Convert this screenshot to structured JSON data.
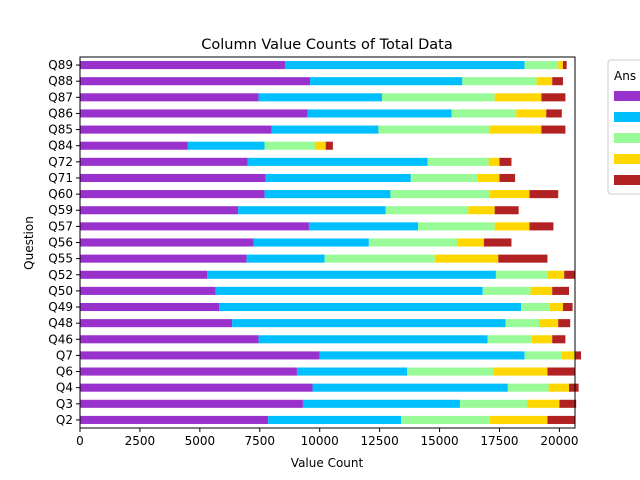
{
  "chart_data": {
    "type": "bar",
    "orientation": "horizontal",
    "stacked": true,
    "title": "Column Value Counts of Total Data",
    "xlabel": "Value Count",
    "ylabel": "Question",
    "xlim": [
      0,
      20650
    ],
    "xticks": [
      "0",
      "2500",
      "5000",
      "7500",
      "10000",
      "12500",
      "15000",
      "17500",
      "20000"
    ],
    "grid": false,
    "legend": {
      "title": "Ans",
      "placement": "right-outside-top"
    },
    "categories": [
      "Q2",
      "Q3",
      "Q4",
      "Q6",
      "Q7",
      "Q46",
      "Q48",
      "Q49",
      "Q50",
      "Q52",
      "Q55",
      "Q56",
      "Q57",
      "Q59",
      "Q60",
      "Q71",
      "Q72",
      "Q84",
      "Q85",
      "Q86",
      "Q87",
      "Q88",
      "Q89"
    ],
    "series": [
      {
        "color": "#9932cc",
        "values": [
          7850,
          9300,
          9700,
          9050,
          10000,
          7450,
          6350,
          5800,
          5650,
          5300,
          6950,
          7250,
          9550,
          6600,
          7700,
          7750,
          7000,
          4500,
          8000,
          9500,
          7450,
          9600,
          8550
        ]
      },
      {
        "color": "#00bfff",
        "values": [
          5550,
          6550,
          8150,
          4600,
          8550,
          9550,
          11400,
          12600,
          11150,
          12050,
          3250,
          4800,
          4550,
          6150,
          5250,
          6050,
          7500,
          3200,
          4450,
          6000,
          5150,
          6350,
          10000
        ]
      },
      {
        "color": "#98fb98",
        "values": [
          3700,
          2800,
          1700,
          3600,
          1550,
          1850,
          1400,
          1200,
          2000,
          2150,
          4600,
          3700,
          3200,
          3450,
          4150,
          2800,
          2550,
          2100,
          4650,
          2700,
          4700,
          3100,
          1400
        ]
      },
      {
        "color": "#ffd700",
        "values": [
          2400,
          1350,
          850,
          2250,
          550,
          850,
          800,
          550,
          900,
          700,
          2650,
          1100,
          1450,
          1100,
          1650,
          900,
          450,
          450,
          2150,
          1250,
          1950,
          650,
          200
        ]
      },
      {
        "color": "#b22222",
        "values": [
          1150,
          700,
          400,
          1150,
          250,
          550,
          500,
          400,
          700,
          450,
          2050,
          1150,
          1000,
          1000,
          1200,
          650,
          500,
          300,
          1000,
          650,
          1000,
          450,
          150
        ]
      }
    ]
  }
}
